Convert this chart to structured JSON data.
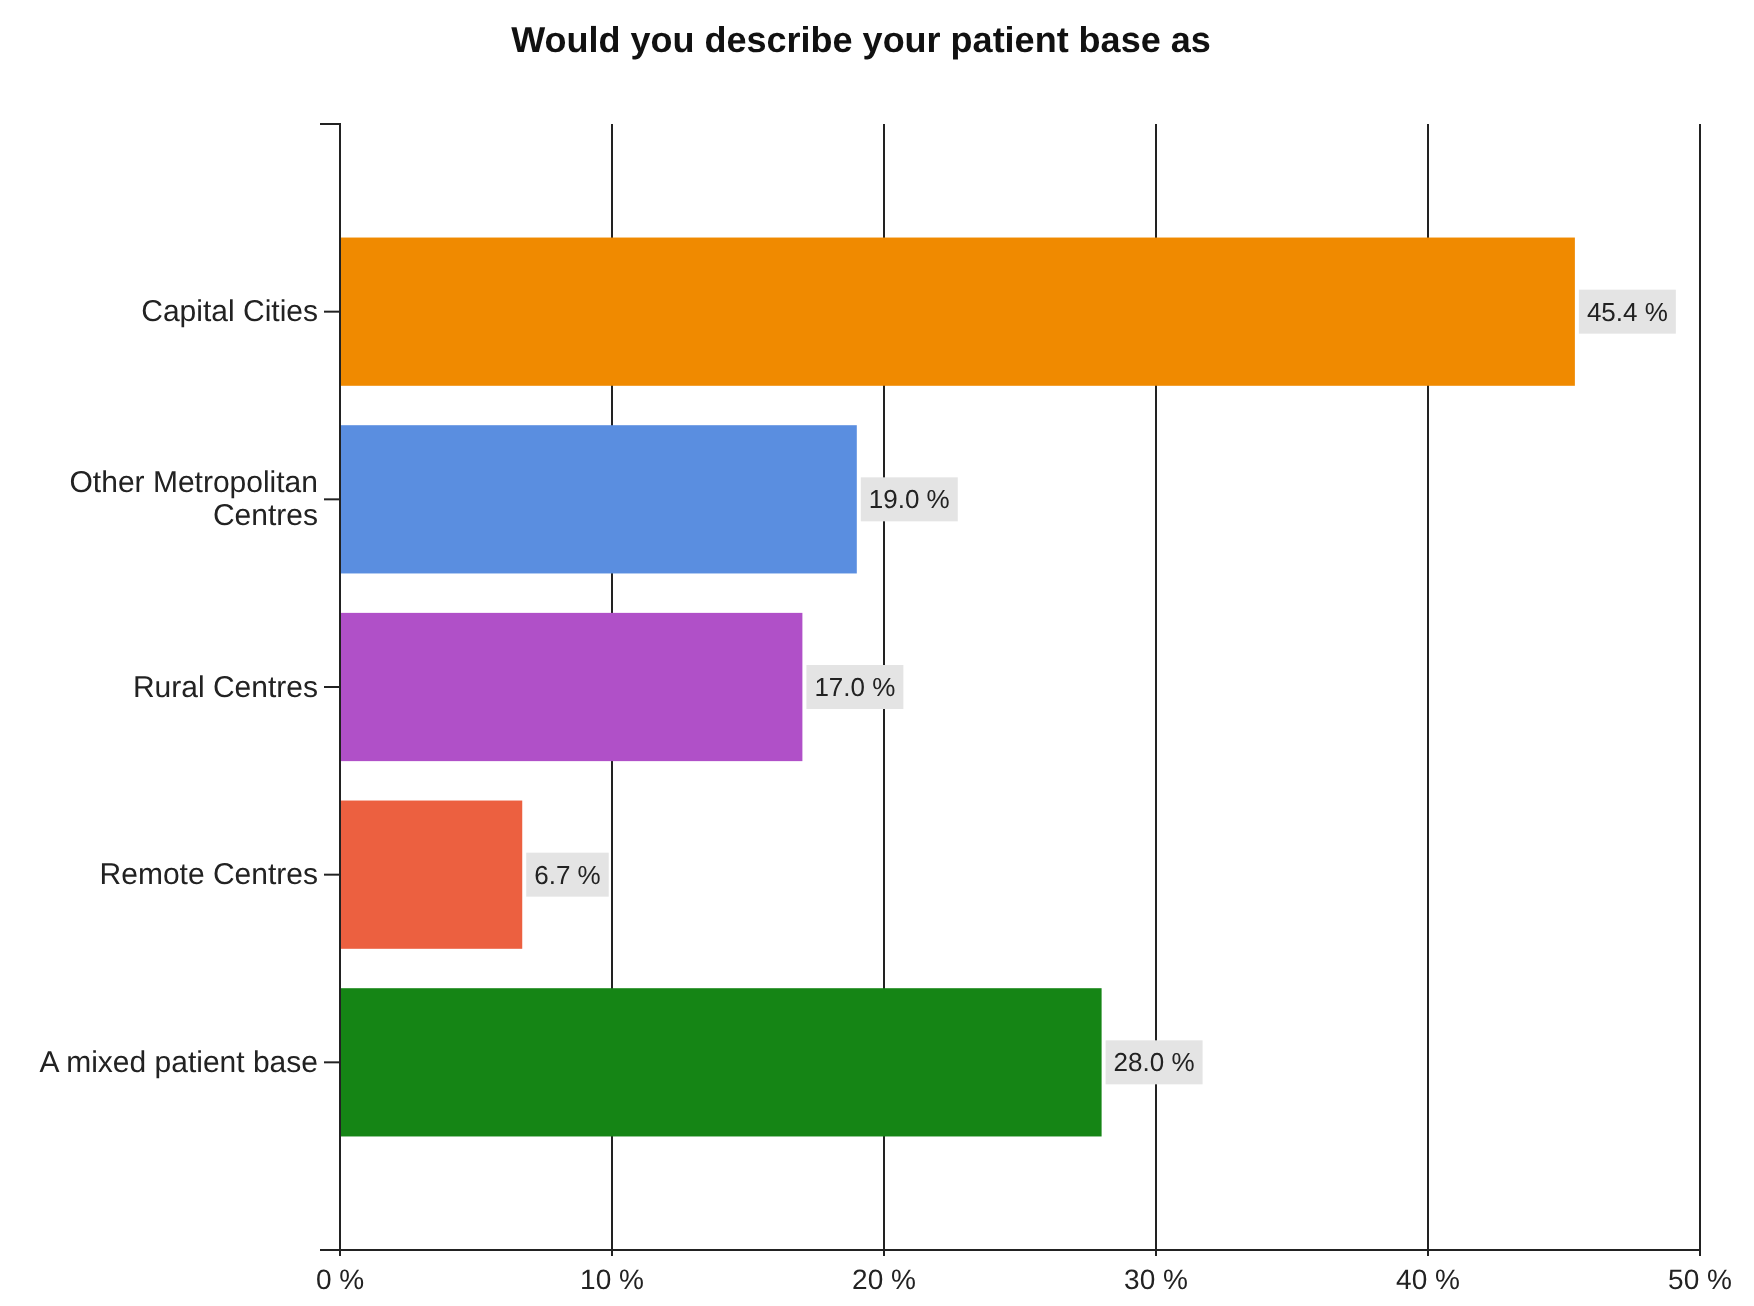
{
  "chart_data": {
    "type": "bar",
    "orientation": "horizontal",
    "title": "Would you describe your patient base as",
    "categories": [
      "Capital Cities",
      "Other Metropolitan Centres",
      "Rural Centres",
      "Remote Centres",
      "A mixed patient base"
    ],
    "values": [
      45.4,
      19.0,
      17.0,
      6.7,
      28.0
    ],
    "colors": [
      "#f08a00",
      "#5a8ee0",
      "#b050c8",
      "#ec6040",
      "#158515"
    ],
    "value_labels": [
      "45.4 %",
      "19.0 %",
      "17.0 %",
      "6.7 %",
      "28.0 %"
    ],
    "xlim": [
      0,
      50
    ],
    "xticks": [
      {
        "value": 0,
        "label": "0 %"
      },
      {
        "value": 10,
        "label": "10 %"
      },
      {
        "value": 20,
        "label": "20 %"
      },
      {
        "value": 30,
        "label": "30 %"
      },
      {
        "value": 40,
        "label": "40 %"
      },
      {
        "value": 50,
        "label": "50 %"
      }
    ],
    "grid": "x"
  }
}
